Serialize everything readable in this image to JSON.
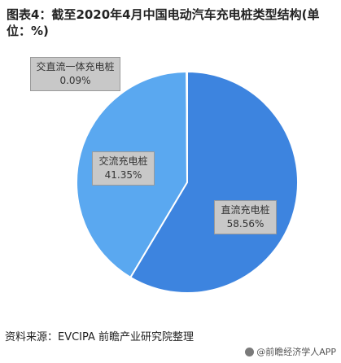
{
  "title": "图表4：截至2020年4月中国电动汽车充电桩类型结构(单位：%)",
  "source": "资料来源：EVCIPA 前瞻产业研究院整理",
  "credit": "@前瞻经济学人APP",
  "colors": {
    "dc": "#3d84df",
    "ac": "#5aa8f0",
    "integrated": "#bcbcbc",
    "label_box": "#c8c8c8"
  },
  "chart_data": {
    "type": "pie",
    "slices": [
      {
        "label": "直流充电桩",
        "value": 58.56,
        "display": "58.56%"
      },
      {
        "label": "交流充电桩",
        "value": 41.35,
        "display": "41.35%"
      },
      {
        "label": "交直流一体充电桩",
        "value": 0.09,
        "display": "0.09%"
      }
    ]
  }
}
